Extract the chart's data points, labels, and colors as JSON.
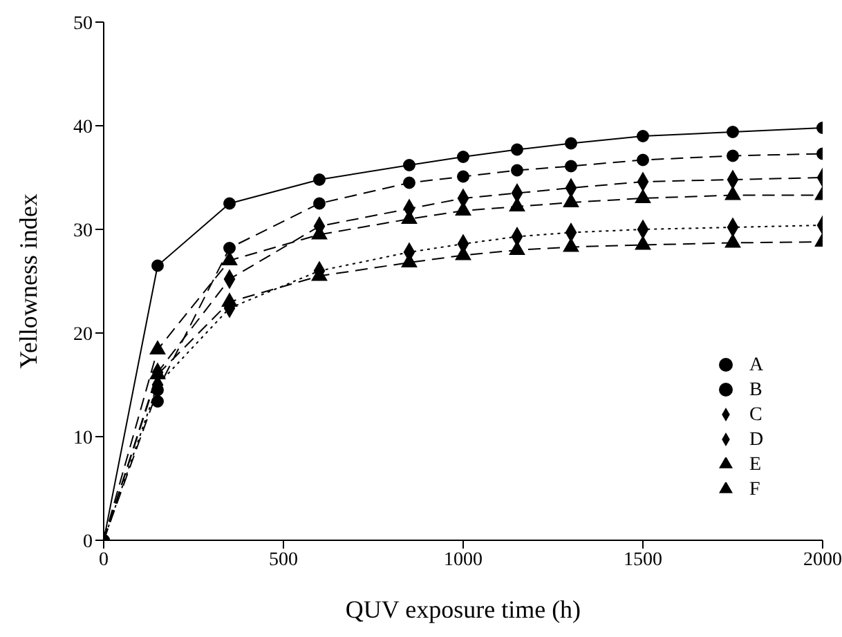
{
  "chart_data": {
    "type": "line",
    "xlabel": "QUV exposure time (h)",
    "ylabel": "Yellowness index",
    "x": [
      0,
      150,
      350,
      600,
      850,
      1000,
      1150,
      1300,
      1500,
      1750,
      2000
    ],
    "xlim": [
      0,
      2000
    ],
    "xticks": [
      0,
      500,
      1000,
      1500,
      2000
    ],
    "ylim": [
      0,
      50
    ],
    "yticks": [
      0,
      10,
      20,
      30,
      40,
      50
    ],
    "legend": "bottom right",
    "series": [
      {
        "name": "A",
        "color": "#000000",
        "marker": "circle",
        "line_style": "solid",
        "values": [
          0,
          26.5,
          32.5,
          34.8,
          36.2,
          37,
          37.7,
          38.3,
          39,
          39.4,
          39.8
        ]
      },
      {
        "name": "B",
        "color": "#000000",
        "marker": "circle",
        "line_style": "dashed",
        "values": [
          0,
          14.5,
          28.2,
          32.5,
          34.5,
          35.1,
          35.7,
          36.1,
          36.7,
          37.1,
          37.3
        ]
      },
      {
        "name": "C",
        "color": "#000000",
        "marker": "diamond",
        "line_style": "dashed",
        "values": [
          0,
          16.2,
          25.2,
          30.3,
          32,
          33,
          33.5,
          34,
          34.6,
          34.8,
          35
        ]
      },
      {
        "name": "D",
        "color": "#000000",
        "marker": "diamond",
        "line_style": "dotted",
        "values": [
          0,
          15,
          22.4,
          26,
          27.8,
          28.6,
          29.3,
          29.7,
          30,
          30.2,
          30.4
        ]
      },
      {
        "name": "E",
        "color": "#000000",
        "marker": "triangle",
        "line_style": "dashed",
        "values": [
          0,
          16,
          23,
          25.5,
          26.8,
          27.5,
          28,
          28.3,
          28.5,
          28.7,
          28.8
        ]
      },
      {
        "name": "F",
        "color": "#000000",
        "marker": "triangle",
        "line_style": "dashed",
        "values": [
          0,
          18.4,
          27,
          29.5,
          31,
          31.8,
          32.2,
          32.6,
          33,
          33.3,
          33.3
        ]
      },
      {
        "type": "scatter",
        "color": "#000000",
        "marker": "circle",
        "x": [
          150
        ],
        "values": [
          13.4
        ]
      }
    ]
  }
}
